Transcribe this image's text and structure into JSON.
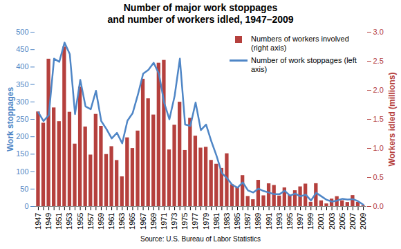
{
  "chart_data": {
    "type": "bar",
    "title": "Number of major work stoppages\nand number of workers idled, 1947–2009",
    "caption": "Source: U.S. Bureau of Labor Statistics",
    "y_label": "Work stoppages",
    "y2_label": "Workers idled (millions)",
    "legend": "top-right",
    "categories": [
      "1947",
      null,
      "1949",
      null,
      "1951",
      null,
      "1953",
      null,
      "1955",
      null,
      "1957",
      null,
      "1959",
      null,
      "1961",
      null,
      "1963",
      null,
      "1965",
      null,
      "1967",
      null,
      "1969",
      null,
      "1971",
      null,
      "1973",
      null,
      "1975",
      null,
      "1977",
      null,
      "1979",
      null,
      "1981",
      null,
      "1983",
      null,
      "1985",
      null,
      "1987",
      null,
      "1989",
      null,
      "1991",
      null,
      "1993",
      null,
      "1995",
      null,
      "1997",
      null,
      "1999",
      null,
      "2001",
      null,
      "2003",
      null,
      "2005",
      null,
      "2007",
      null,
      "2009"
    ],
    "series": [
      {
        "name": "Numbers of workers involved (right axis)",
        "type": "bar",
        "axis": "y2",
        "color": "#b5403d",
        "values": [
          1.629,
          1.435,
          2.537,
          1.698,
          1.462,
          2.746,
          1.623,
          1.075,
          2.055,
          1.37,
          0.887,
          1.587,
          1.381,
          0.896,
          1.031,
          0.793,
          0.512,
          1.183,
          0.999,
          1.3,
          2.192,
          1.855,
          1.576,
          2.468,
          2.516,
          0.975,
          1.4,
          1.796,
          0.965,
          1.519,
          1.212,
          1.006,
          1.021,
          0.795,
          0.729,
          0.656,
          0.909,
          0.376,
          0.324,
          0.533,
          0.174,
          0.118,
          0.452,
          0.185,
          0.392,
          0.364,
          0.182,
          0.322,
          0.192,
          0.273,
          0.339,
          0.387,
          0.073,
          0.394,
          0.099,
          0.046,
          0.129,
          0.171,
          0.1,
          0.07,
          0.189,
          0.072,
          0.013
        ]
      },
      {
        "name": "Number of work stoppages (left axis)",
        "type": "line",
        "axis": "y",
        "color": "#4f86c6",
        "values": [
          270,
          245,
          262,
          424,
          415,
          470,
          437,
          265,
          363,
          287,
          279,
          332,
          245,
          222,
          195,
          211,
          181,
          246,
          268,
          321,
          381,
          392,
          412,
          381,
          298,
          250,
          317,
          424,
          235,
          231,
          298,
          219,
          235,
          187,
          145,
          96,
          81,
          62,
          54,
          69,
          46,
          40,
          51,
          44,
          40,
          35,
          35,
          45,
          31,
          37,
          29,
          34,
          17,
          39,
          29,
          19,
          14,
          17,
          22,
          20,
          21,
          15,
          5
        ]
      }
    ],
    "ylim": [
      0,
      500
    ],
    "yticks": [
      0,
      50,
      100,
      150,
      200,
      250,
      300,
      350,
      400,
      450,
      500
    ],
    "y2lim": [
      0,
      3
    ],
    "y2ticks": [
      {
        "value": 0,
        "label": "0.0"
      },
      0.5,
      {
        "value": 1,
        "label": "1.0"
      },
      1.5,
      {
        "value": 2,
        "label": "2.0"
      },
      2.5,
      {
        "value": 3,
        "label": "3.0"
      }
    ],
    "grid": false
  }
}
